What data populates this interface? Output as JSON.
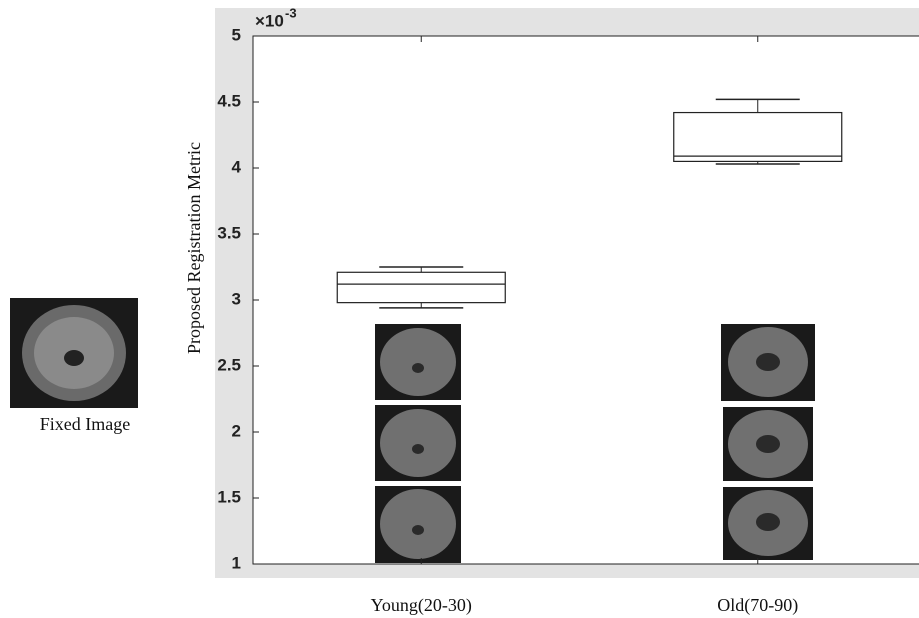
{
  "chart_data": {
    "type": "box",
    "y_label": "Proposed Registration Metric",
    "y_scale_base": "×10",
    "y_scale_exponent": "-3",
    "annotations": [
      "Fixed Image"
    ],
    "categories": [
      "Young(20-30)",
      "Old(70-90)"
    ],
    "boxes": [
      {
        "min": 2.94,
        "q1": 2.98,
        "median": 3.12,
        "q3": 3.21,
        "max": 3.25
      },
      {
        "min": 4.03,
        "q1": 4.05,
        "median": 4.09,
        "q3": 4.42,
        "max": 4.52
      }
    ],
    "color": "#222222",
    "ylim": [
      1,
      5
    ],
    "yticks": [
      1,
      1.5,
      2,
      2.5,
      3,
      3.5,
      4,
      4.5,
      5
    ]
  }
}
